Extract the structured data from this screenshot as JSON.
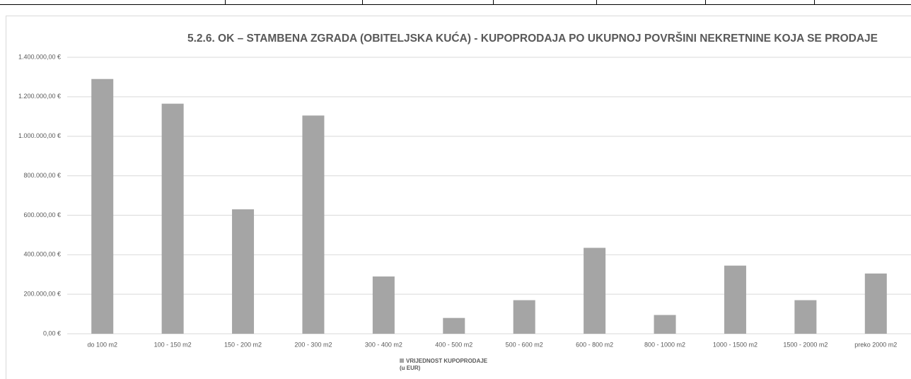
{
  "chart_data": {
    "type": "bar",
    "title": "5.2.6. OK – STAMBENA ZGRADA (OBITELJSKA KUĆA) - KUPOPRODAJA PO UKUPNOJ POVRŠINI NEKRETNINE KOJA SE PRODAJE",
    "categories": [
      "do 100 m2",
      "100 - 150 m2",
      "150 - 200 m2",
      "200 - 300 m2",
      "300 - 400 m2",
      "400 - 500 m2",
      "500 - 600 m2",
      "600 - 800 m2",
      "800 - 1000 m2",
      "1000 - 1500 m2",
      "1500 - 2000 m2",
      "preko 2000 m2"
    ],
    "series": [
      {
        "name": "VRIJEDNOST KUPOPRODAJE\n(u EUR)",
        "color": "#a5a5a5",
        "values": [
          1290000,
          1165000,
          630000,
          1105000,
          290000,
          80000,
          170000,
          435000,
          95000,
          345000,
          170000,
          305000
        ]
      }
    ],
    "ylim": [
      0,
      1400000
    ],
    "yticks": [
      {
        "value": 0,
        "label": "0,00 €"
      },
      {
        "value": 200000,
        "label": "200.000,00 €"
      },
      {
        "value": 400000,
        "label": "400.000,00 €"
      },
      {
        "value": 600000,
        "label": "600.000,00 €"
      },
      {
        "value": 800000,
        "label": "800.000,00 €"
      },
      {
        "value": 1000000,
        "label": "1.000.000,00 €"
      },
      {
        "value": 1200000,
        "label": "1.200.000,00 €"
      },
      {
        "value": 1400000,
        "label": "1.400.000,00 €"
      }
    ],
    "grid": true,
    "legend": "bottom"
  }
}
